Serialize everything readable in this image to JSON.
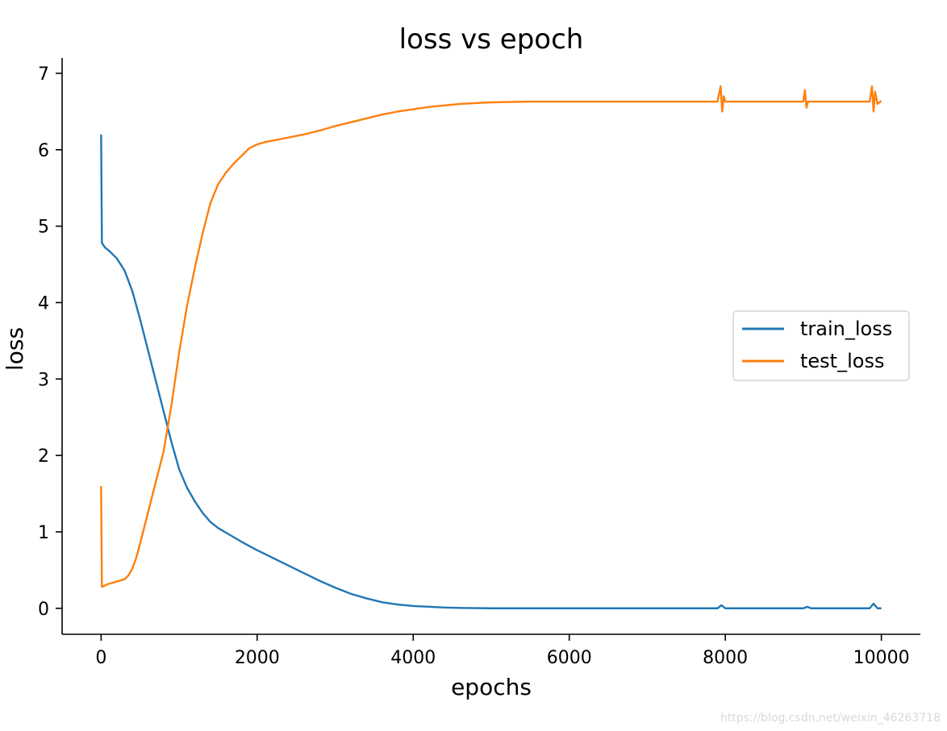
{
  "chart_data": {
    "type": "line",
    "title": "loss vs epoch",
    "xlabel": "epochs",
    "ylabel": "loss",
    "xlim": [
      -500,
      10500
    ],
    "ylim": [
      -0.34,
      7.2
    ],
    "xticks": [
      0,
      2000,
      4000,
      6000,
      8000,
      10000
    ],
    "yticks": [
      0,
      1,
      2,
      3,
      4,
      5,
      6,
      7
    ],
    "grid": false,
    "legend_position": "center-right",
    "series": [
      {
        "name": "train_loss",
        "color": "#1f77b4",
        "x": [
          0,
          10,
          30,
          50,
          100,
          200,
          300,
          400,
          500,
          600,
          700,
          800,
          900,
          1000,
          1100,
          1200,
          1300,
          1400,
          1500,
          1600,
          1800,
          2000,
          2200,
          2400,
          2600,
          2800,
          3000,
          3200,
          3400,
          3600,
          3800,
          4000,
          4200,
          4400,
          4600,
          5000,
          6000,
          7000,
          7900,
          7950,
          8000,
          9000,
          9050,
          9100,
          9850,
          9900,
          9950,
          10000
        ],
        "y": [
          6.2,
          4.78,
          4.75,
          4.72,
          4.68,
          4.58,
          4.42,
          4.15,
          3.78,
          3.38,
          2.98,
          2.58,
          2.18,
          1.82,
          1.58,
          1.4,
          1.25,
          1.13,
          1.05,
          0.99,
          0.87,
          0.76,
          0.66,
          0.56,
          0.46,
          0.36,
          0.27,
          0.19,
          0.13,
          0.08,
          0.05,
          0.03,
          0.02,
          0.01,
          0.005,
          0.0,
          0.0,
          0.0,
          0.0,
          0.04,
          0.0,
          0.0,
          0.02,
          0.0,
          0.0,
          0.06,
          0.0,
          0.0
        ]
      },
      {
        "name": "test_loss",
        "color": "#ff7f0e",
        "x": [
          0,
          10,
          30,
          100,
          200,
          300,
          350,
          400,
          450,
          500,
          600,
          700,
          800,
          900,
          1000,
          1100,
          1200,
          1300,
          1400,
          1500,
          1600,
          1700,
          1800,
          1900,
          2000,
          2100,
          2200,
          2400,
          2600,
          2800,
          3000,
          3200,
          3400,
          3600,
          3800,
          4000,
          4200,
          4400,
          4600,
          4800,
          5000,
          5500,
          6000,
          6500,
          7000,
          7500,
          7900,
          7940,
          7960,
          7980,
          8000,
          9000,
          9020,
          9040,
          9060,
          9850,
          9880,
          9900,
          9920,
          9950,
          10000
        ],
        "y": [
          1.6,
          0.28,
          0.29,
          0.32,
          0.35,
          0.38,
          0.43,
          0.52,
          0.66,
          0.85,
          1.25,
          1.65,
          2.05,
          2.65,
          3.35,
          3.95,
          4.45,
          4.9,
          5.3,
          5.55,
          5.7,
          5.82,
          5.92,
          6.02,
          6.07,
          6.1,
          6.12,
          6.16,
          6.2,
          6.25,
          6.31,
          6.36,
          6.41,
          6.46,
          6.5,
          6.53,
          6.56,
          6.58,
          6.6,
          6.61,
          6.62,
          6.63,
          6.63,
          6.63,
          6.63,
          6.63,
          6.63,
          6.83,
          6.5,
          6.7,
          6.63,
          6.63,
          6.78,
          6.55,
          6.63,
          6.63,
          6.83,
          6.5,
          6.76,
          6.6,
          6.64
        ]
      }
    ]
  },
  "watermark": "https://blog.csdn.net/weixin_46263718"
}
